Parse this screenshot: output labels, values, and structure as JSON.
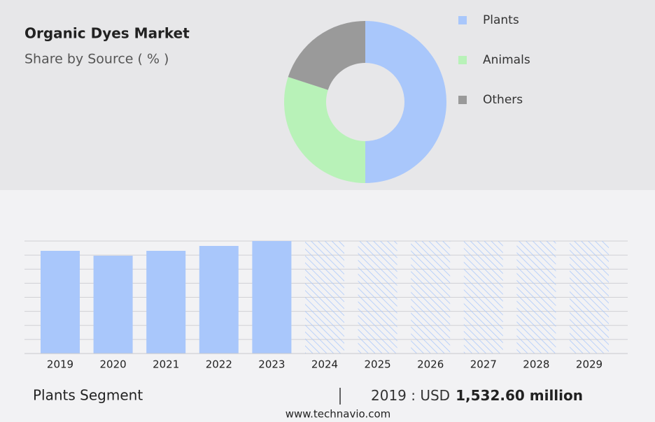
{
  "chart_data": [
    {
      "type": "pie",
      "title": "Organic Dyes Market",
      "subtitle": "Share by Source ( % )",
      "categories": [
        "Plants",
        "Animals",
        "Others"
      ],
      "values": [
        50,
        30,
        20
      ],
      "colors": [
        "#a9c7fb",
        "#b8f2b8",
        "#9a9a9a"
      ]
    },
    {
      "type": "bar",
      "categories": [
        "2019",
        "2020",
        "2021",
        "2022",
        "2023",
        "2024",
        "2025",
        "2026",
        "2027",
        "2028",
        "2029"
      ],
      "values": [
        1532.6,
        1459.6,
        1532.6,
        1605.6,
        1678.6,
        null,
        null,
        null,
        null,
        null,
        null
      ],
      "color": "#a9c7fb",
      "ylim": [
        0,
        1678.6
      ],
      "grid": true
    }
  ],
  "footer": {
    "segment": "Plants Segment",
    "year_label": "2019 : USD",
    "value": "1,532.60 million",
    "source": "www.technavio.com"
  }
}
